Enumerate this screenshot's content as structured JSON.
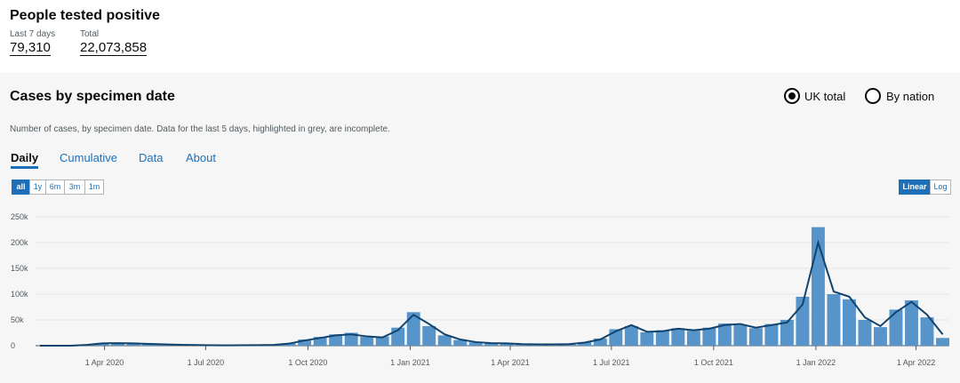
{
  "header": {
    "title": "People tested positive",
    "last7_label": "Last 7 days",
    "last7_value": "79,310",
    "total_label": "Total",
    "total_value": "22,073,858"
  },
  "card": {
    "title": "Cases by specimen date",
    "options": [
      "UK total",
      "By nation"
    ],
    "description": "Number of cases, by specimen date. Data for the last 5 days, highlighted in grey, are incomplete.",
    "tabs": [
      "Daily",
      "Cumulative",
      "Data",
      "About"
    ],
    "ranges": [
      "all",
      "1y",
      "6m",
      "3m",
      "1m"
    ],
    "scales": [
      "Linear",
      "Log"
    ]
  },
  "chart_data": {
    "type": "bar-line",
    "x": [
      "2020-02-03",
      "2020-02-17",
      "2020-03-02",
      "2020-03-16",
      "2020-03-30",
      "2020-04-13",
      "2020-04-27",
      "2020-05-11",
      "2020-05-25",
      "2020-06-08",
      "2020-06-22",
      "2020-07-06",
      "2020-07-20",
      "2020-08-03",
      "2020-08-17",
      "2020-08-31",
      "2020-09-14",
      "2020-09-28",
      "2020-10-12",
      "2020-10-26",
      "2020-11-09",
      "2020-11-23",
      "2020-12-07",
      "2020-12-21",
      "2021-01-04",
      "2021-01-18",
      "2021-02-01",
      "2021-02-15",
      "2021-03-01",
      "2021-03-15",
      "2021-03-29",
      "2021-04-12",
      "2021-04-26",
      "2021-05-10",
      "2021-05-24",
      "2021-06-07",
      "2021-06-21",
      "2021-07-05",
      "2021-07-19",
      "2021-08-02",
      "2021-08-16",
      "2021-08-30",
      "2021-09-13",
      "2021-09-27",
      "2021-10-11",
      "2021-10-25",
      "2021-11-08",
      "2021-11-22",
      "2021-12-06",
      "2021-12-20",
      "2022-01-03",
      "2022-01-17",
      "2022-01-31",
      "2022-02-14",
      "2022-02-28",
      "2022-03-14",
      "2022-03-28",
      "2022-04-11",
      "2022-04-25"
    ],
    "series": [
      {
        "color": "#5694ca",
        "values": [
          0,
          0,
          200,
          2000,
          5000,
          5500,
          4000,
          3200,
          2200,
          1600,
          1000,
          700,
          600,
          1000,
          1000,
          1700,
          4500,
          12000,
          17000,
          22000,
          25000,
          17000,
          18000,
          35000,
          65000,
          38000,
          20000,
          11000,
          6500,
          5200,
          4000,
          2800,
          2300,
          2600,
          3200,
          7000,
          14000,
          32000,
          38000,
          26000,
          30000,
          34000,
          29000,
          35000,
          43000,
          40000,
          34000,
          42000,
          50000,
          95000,
          230000,
          100000,
          90000,
          50000,
          36000,
          70000,
          88000,
          55000,
          15000
        ]
      },
      {
        "color": "#12436d",
        "values": [
          0,
          0,
          100,
          1500,
          4500,
          5000,
          4500,
          3500,
          2500,
          1800,
          1200,
          800,
          700,
          900,
          1100,
          1500,
          4000,
          10000,
          15000,
          20000,
          22000,
          18000,
          16000,
          30000,
          60000,
          42000,
          22000,
          12000,
          7000,
          5000,
          4500,
          3000,
          2500,
          2500,
          3000,
          6000,
          12000,
          28000,
          40000,
          27000,
          28000,
          33000,
          30000,
          33000,
          40000,
          42000,
          35000,
          40000,
          45000,
          80000,
          200000,
          105000,
          95000,
          55000,
          38000,
          65000,
          85000,
          60000,
          22000
        ]
      }
    ],
    "xlim": [
      "2020-01-30",
      "2022-05-01"
    ],
    "ylim": [
      0,
      250000
    ],
    "yticks": [
      0,
      {
        "value": 50000,
        "label": "50k"
      },
      {
        "value": 100000,
        "label": "100k"
      },
      {
        "value": 150000,
        "label": "150k"
      },
      {
        "value": 200000,
        "label": "200k"
      },
      {
        "value": 250000,
        "label": "250k"
      }
    ],
    "xticks": [
      {
        "value": "2020-04-01",
        "label": "1 Apr 2020"
      },
      {
        "value": "2020-07-01",
        "label": "1 Jul 2020"
      },
      {
        "value": "2020-10-01",
        "label": "1 Oct 2020"
      },
      {
        "value": "2021-01-01",
        "label": "1 Jan 2021"
      },
      {
        "value": "2021-04-01",
        "label": "1 Apr 2021"
      },
      {
        "value": "2021-07-01",
        "label": "1 Jul 2021"
      },
      {
        "value": "2021-10-01",
        "label": "1 Oct 2021"
      },
      {
        "value": "2022-01-01",
        "label": "1 Jan 2022"
      },
      {
        "value": "2022-04-01",
        "label": "1 Apr 2022"
      }
    ],
    "grid": true
  }
}
